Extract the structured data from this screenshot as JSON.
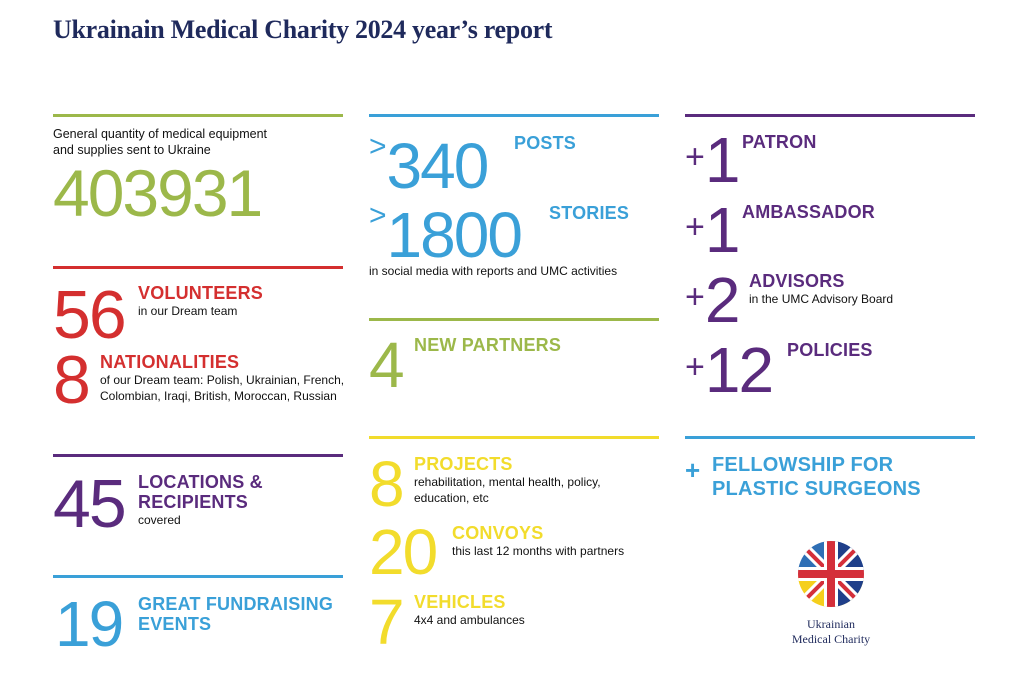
{
  "title": "Ukrainain Medical Charity 2024 year’s report",
  "colors": {
    "green": "#9cb84a",
    "red": "#d42f2f",
    "purple": "#5a2b7d",
    "blue": "#3aa0d8",
    "yellow": "#f2dc2c",
    "navy": "#1f2a5c"
  },
  "col1": {
    "equipment": {
      "caption_line1": "General quantity of medical equipment",
      "caption_line2": "and supplies sent to Ukraine",
      "value": "403931"
    },
    "volunteers": {
      "value": "56",
      "label": "VOLUNTEERS",
      "sub": "in our Dream team"
    },
    "nationalities": {
      "value": "8",
      "label": "NATIONALITIES",
      "sub_line1": "of our Dream team: Polish, Ukrainian, French,",
      "sub_line2": "Colombian, Iraqi, British, Moroccan, Russian"
    },
    "locations": {
      "value": "45",
      "label_line1": "LOCATIONS &",
      "label_line2": "RECIPIENTS",
      "sub": "covered"
    },
    "fundraising": {
      "value": "19",
      "label_line1": "GREAT FUNDRAISING",
      "label_line2": "EVENTS"
    }
  },
  "col2": {
    "posts": {
      "prefix": ">",
      "value": "340",
      "label": "POSTS"
    },
    "stories": {
      "prefix": ">",
      "value": "1800",
      "label": "STORIES"
    },
    "social_sub": "in social media with reports and UMC activities",
    "partners": {
      "value": "4",
      "label": "NEW PARTNERS"
    },
    "projects": {
      "value": "8",
      "label": "PROJECTS",
      "sub_line1": "rehabilitation, mental health, policy,",
      "sub_line2": "education, etc"
    },
    "convoys": {
      "value": "20",
      "label": "CONVOYS",
      "sub": "this last 12 months with partners"
    },
    "vehicles": {
      "value": "7",
      "label": "VEHICLES",
      "sub": "4x4 and ambulances"
    }
  },
  "col3": {
    "patron": {
      "prefix": "+",
      "value": "1",
      "label": "PATRON"
    },
    "ambassador": {
      "prefix": "+",
      "value": "1",
      "label": "AMBASSADOR"
    },
    "advisors": {
      "prefix": "+",
      "value": "2",
      "label": "ADVISORS",
      "sub": "in the UMC Advisory Board"
    },
    "policies": {
      "prefix": "+",
      "value": "12",
      "label": "POLICIES"
    },
    "fellowship": {
      "prefix": "+",
      "label_line1": "FELLOWSHIP FOR",
      "label_line2": "PLASTIC SURGEONS"
    },
    "logo": {
      "line1": "Ukrainian",
      "line2": "Medical Charity",
      "icon": "ukraine-uk-flag-circle-icon"
    }
  }
}
